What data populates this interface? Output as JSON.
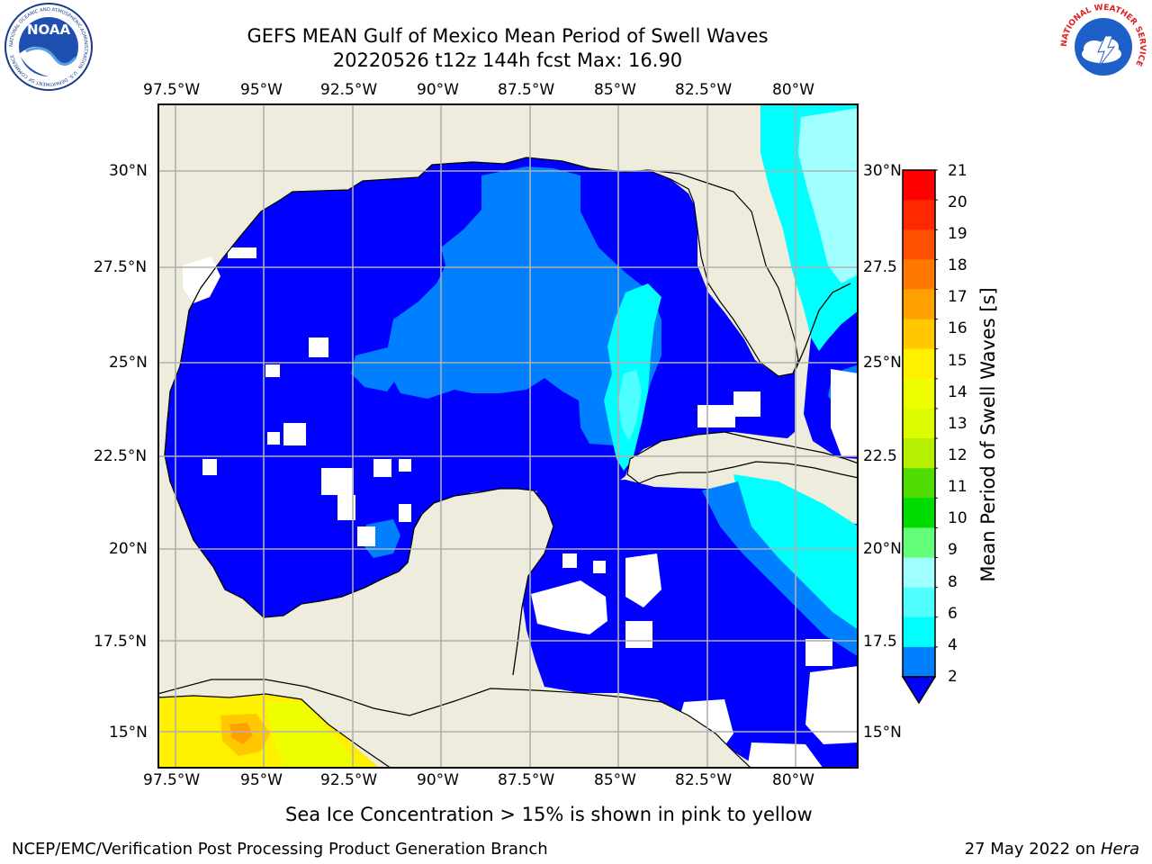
{
  "title": {
    "line1": "GEFS MEAN Gulf of Mexico Mean Period of Swell Waves",
    "line2": "20220526 t12z 144h fcst   Max: 16.90"
  },
  "logos": {
    "left": "NOAA",
    "left_ring": "NATIONAL OCEANIC AND ATMOSPHERIC ADMINISTRATION · U.S. DEPARTMENT OF COMMERCE",
    "right_ring": "NATIONAL WEATHER SERVICE"
  },
  "map": {
    "lon_ticks": [
      "97.5°W",
      "95°W",
      "92.5°W",
      "90°W",
      "87.5°W",
      "85°W",
      "82.5°W",
      "80°W"
    ],
    "lat_ticks_left": [
      "30°N",
      "27.5°N",
      "25°N",
      "22.5°N",
      "20°N",
      "17.5°N",
      "15°N"
    ],
    "lat_ticks_right": [
      "30°N",
      "27.5",
      "25°N",
      "22.5",
      "20°N",
      "17.5",
      "15°N"
    ],
    "land_color": "#eeecdc",
    "grid_color": "#b0b0b0"
  },
  "colorbar": {
    "label": "Mean Period of Swell Waves [s]",
    "ticks": [
      "21",
      "20",
      "19",
      "18",
      "17",
      "16",
      "15",
      "14",
      "13",
      "12",
      "11",
      "10",
      "9",
      "8",
      "6",
      "4",
      "2"
    ],
    "colors": [
      "#ff0000",
      "#ff2800",
      "#ff5000",
      "#ff7800",
      "#ffa000",
      "#ffc800",
      "#fff000",
      "#f0ff00",
      "#dcfc00",
      "#b4f000",
      "#50dc00",
      "#00dc00",
      "#64ff78",
      "#a0ffff",
      "#50ffff",
      "#00ffff",
      "#0080ff",
      "#0000ff"
    ]
  },
  "footer": {
    "sea_ice_note": "Sea Ice Concentration > 15% is shown in pink to yellow",
    "credit": "NCEP/EMC/Verification Post Processing Product Generation Branch",
    "date": "27 May 2022 on ",
    "machine": "Hera"
  }
}
